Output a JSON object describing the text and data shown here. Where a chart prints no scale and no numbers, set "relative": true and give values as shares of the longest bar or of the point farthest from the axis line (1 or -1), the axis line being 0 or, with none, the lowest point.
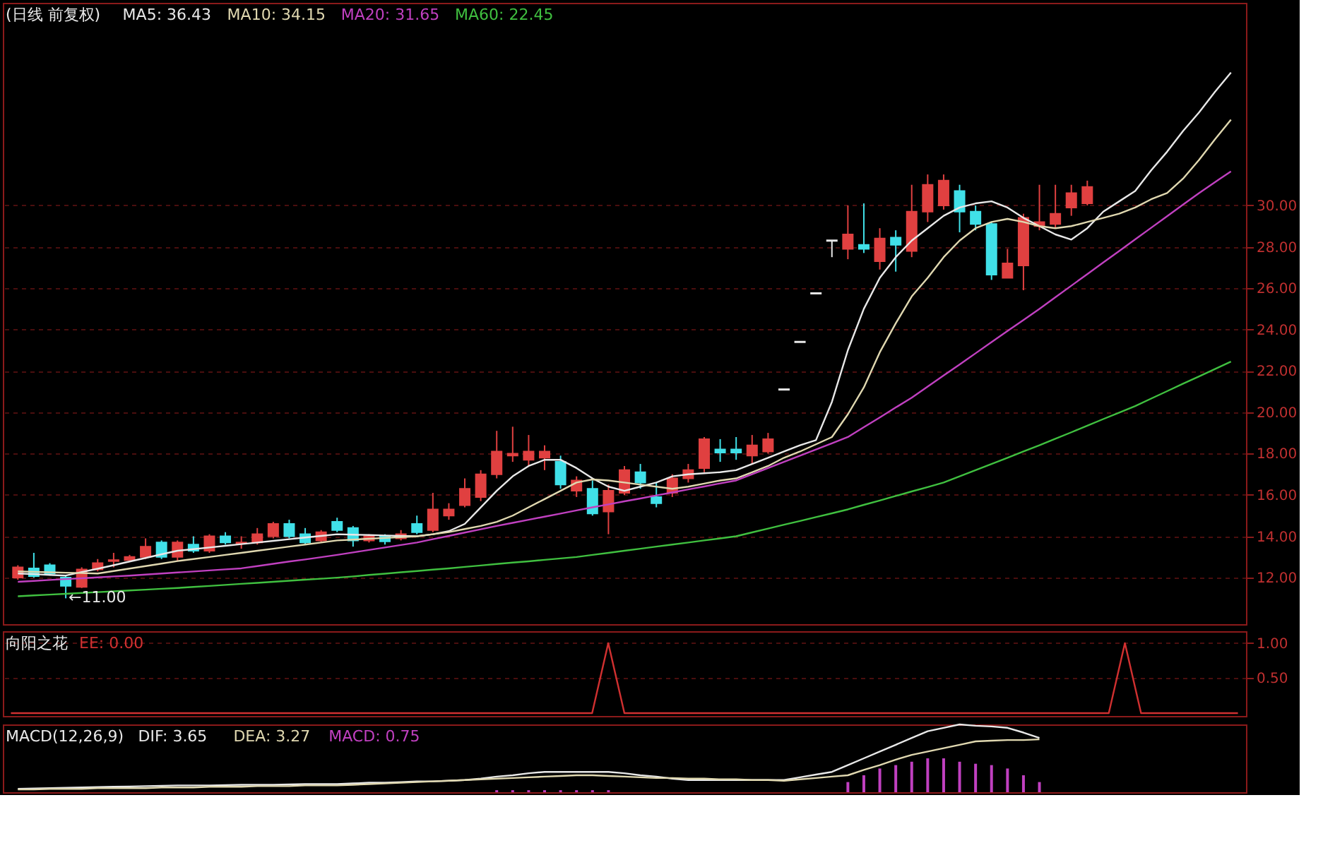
{
  "chart_data": [
    {
      "type": "candlestick",
      "title": "(日线 前复权)",
      "grid": "y",
      "tick_labels": "y",
      "line_style": "solid",
      "categories": [
        null,
        null,
        null,
        null,
        null,
        null,
        null,
        null,
        null,
        null,
        null,
        null,
        null,
        null,
        null,
        null,
        null,
        null,
        null,
        null,
        null,
        null,
        null,
        null,
        null,
        null,
        null,
        null,
        null,
        null,
        null,
        null,
        null,
        null,
        null,
        null,
        null,
        null,
        null,
        null,
        null,
        null,
        null,
        null,
        null,
        null,
        null,
        null,
        null,
        null,
        null,
        null,
        null,
        null,
        null,
        null,
        null,
        null,
        null,
        null,
        null,
        null,
        null,
        null,
        null,
        null,
        null,
        null,
        null,
        null,
        null,
        null,
        null,
        null,
        null,
        null,
        null
      ],
      "ylim": [
        9.75,
        39.8
      ],
      "yticks": [
        {
          "value": 12,
          "label": "12.00"
        },
        {
          "value": 14,
          "label": "14.00"
        },
        {
          "value": 16,
          "label": "16.00"
        },
        {
          "value": 18,
          "label": "18.00"
        },
        {
          "value": 20,
          "label": "20.00"
        },
        {
          "value": 22,
          "label": "22.00"
        },
        {
          "value": 24,
          "label": "24.00"
        },
        {
          "value": 26,
          "label": "26.00"
        },
        {
          "value": 28,
          "label": "28.00"
        },
        {
          "value": 30,
          "label": "30.00"
        }
      ],
      "ohlc": [
        [
          12.0,
          12.6,
          11.9,
          12.5
        ],
        [
          12.45,
          13.2,
          12.0,
          12.07
        ],
        [
          12.6,
          12.7,
          12.1,
          12.2
        ],
        [
          12.0,
          12.1,
          11.0,
          11.6
        ],
        [
          11.55,
          12.5,
          11.5,
          12.4
        ],
        [
          12.4,
          12.9,
          12.3,
          12.7
        ],
        [
          12.8,
          13.2,
          12.5,
          12.85
        ],
        [
          12.85,
          13.1,
          12.8,
          13.0
        ],
        [
          13.0,
          13.9,
          12.9,
          13.5
        ],
        [
          13.7,
          13.8,
          12.9,
          13.0
        ],
        [
          13.0,
          13.8,
          12.8,
          13.7
        ],
        [
          13.6,
          14.0,
          13.2,
          13.3
        ],
        [
          13.3,
          14.1,
          13.2,
          14.0
        ],
        [
          14.0,
          14.2,
          13.6,
          13.7
        ],
        [
          13.65,
          14.0,
          13.4,
          13.7
        ],
        [
          13.7,
          14.4,
          13.6,
          14.1
        ],
        [
          14.0,
          14.7,
          13.9,
          14.6
        ],
        [
          14.6,
          14.8,
          13.9,
          14.0
        ],
        [
          14.1,
          14.4,
          13.6,
          13.7
        ],
        [
          13.8,
          14.3,
          13.7,
          14.2
        ],
        [
          14.7,
          14.9,
          14.2,
          14.3
        ],
        [
          14.4,
          14.5,
          13.5,
          13.8
        ],
        [
          13.8,
          14.1,
          13.7,
          14.0
        ],
        [
          14.0,
          14.1,
          13.6,
          13.75
        ],
        [
          13.9,
          14.3,
          13.8,
          14.1
        ],
        [
          14.6,
          15.0,
          14.1,
          14.2
        ],
        [
          14.3,
          16.1,
          14.2,
          15.3
        ],
        [
          15.0,
          15.6,
          14.8,
          15.3
        ],
        [
          15.5,
          16.8,
          15.4,
          16.3
        ],
        [
          15.9,
          17.2,
          15.7,
          17.0
        ],
        [
          17.0,
          19.1,
          16.8,
          18.1
        ],
        [
          17.9,
          19.3,
          17.6,
          18.0
        ],
        [
          17.7,
          18.9,
          17.4,
          18.1
        ],
        [
          17.8,
          18.4,
          17.2,
          18.1
        ],
        [
          17.6,
          17.9,
          16.3,
          16.5
        ],
        [
          16.2,
          16.9,
          15.9,
          16.7
        ],
        [
          16.3,
          16.7,
          15.0,
          15.1
        ],
        [
          15.2,
          16.5,
          14.1,
          16.2
        ],
        [
          16.1,
          17.4,
          16.0,
          17.2
        ],
        [
          17.1,
          17.5,
          16.3,
          16.6
        ],
        [
          15.9,
          16.6,
          15.4,
          15.6
        ],
        [
          16.1,
          17.0,
          15.9,
          16.8
        ],
        [
          16.8,
          17.5,
          16.6,
          17.2
        ],
        [
          17.3,
          18.8,
          17.1,
          18.7
        ],
        [
          18.2,
          18.7,
          17.6,
          18.05
        ],
        [
          18.2,
          18.8,
          17.7,
          18.05
        ],
        [
          17.9,
          18.9,
          17.5,
          18.4
        ],
        [
          18.1,
          19.0,
          18.0,
          18.7
        ],
        [
          21.1,
          21.1,
          21.1,
          21.1
        ],
        [
          23.4,
          23.4,
          23.4,
          23.4
        ],
        [
          25.75,
          25.75,
          25.75,
          25.75
        ],
        [
          28.3,
          28.3,
          27.5,
          28.3
        ],
        [
          27.9,
          30.0,
          27.4,
          28.6
        ],
        [
          28.1,
          30.1,
          27.7,
          27.9
        ],
        [
          27.3,
          28.9,
          26.9,
          28.4
        ],
        [
          28.45,
          28.8,
          26.8,
          28.1
        ],
        [
          27.8,
          31.0,
          27.5,
          29.7
        ],
        [
          29.7,
          31.5,
          29.2,
          31.0
        ],
        [
          30.0,
          31.5,
          29.8,
          31.2
        ],
        [
          30.7,
          31.0,
          28.7,
          29.7
        ],
        [
          29.7,
          30.0,
          28.8,
          29.1
        ],
        [
          29.1,
          29.2,
          26.4,
          26.65
        ],
        [
          26.5,
          27.9,
          26.5,
          27.2
        ],
        [
          27.1,
          29.6,
          25.9,
          29.4
        ],
        [
          29.0,
          31.0,
          28.8,
          29.2
        ],
        [
          29.1,
          31.0,
          28.9,
          29.6
        ],
        [
          29.9,
          31.0,
          29.5,
          30.6
        ],
        [
          30.1,
          31.2,
          30.0,
          30.9
        ],
        null,
        null,
        null,
        null,
        null,
        null,
        null,
        null,
        null
      ],
      "colors": [
        "#e04040",
        "#40e0e8",
        "#40e0e8",
        "#40e0e8",
        "#e04040",
        "#e04040",
        "#e04040",
        "#e04040",
        "#e04040",
        "#40e0e8",
        "#e04040",
        "#40e0e8",
        "#e04040",
        "#40e0e8",
        "#e04040",
        "#e04040",
        "#e04040",
        "#40e0e8",
        "#40e0e8",
        "#e04040",
        "#40e0e8",
        "#40e0e8",
        "#e04040",
        "#40e0e8",
        "#e04040",
        "#40e0e8",
        "#e04040",
        "#e04040",
        "#e04040",
        "#e04040",
        "#e04040",
        "#e04040",
        "#e04040",
        "#e04040",
        "#40e0e8",
        "#e04040",
        "#40e0e8",
        "#e04040",
        "#e04040",
        "#40e0e8",
        "#40e0e8",
        "#e04040",
        "#e04040",
        "#e04040",
        "#40e0e8",
        "#40e0e8",
        "#e04040",
        "#e04040",
        "#e8e8e8",
        "#e8e8e8",
        "#e8e8e8",
        "#e8e8e8",
        "#e04040",
        "#40e0e8",
        "#e04040",
        "#40e0e8",
        "#e04040",
        "#e04040",
        "#e04040",
        "#40e0e8",
        "#40e0e8",
        "#40e0e8",
        "#e04040",
        "#e04040",
        "#e04040",
        "#e04040",
        "#e04040",
        "#e04040",
        null,
        null,
        null,
        null,
        null,
        null,
        null,
        null,
        null
      ],
      "series": [
        {
          "name": "MA5: 36.43",
          "color": "#e8e8e8",
          "type": "line",
          "values": [
            12.2,
            12.17,
            12.13,
            12.1,
            12.27,
            12.43,
            12.6,
            12.78,
            12.95,
            13.13,
            13.3,
            13.38,
            13.46,
            13.54,
            13.62,
            13.7,
            13.78,
            13.86,
            13.94,
            14.02,
            14.1,
            14.08,
            14.06,
            14.04,
            14.02,
            14.0,
            14.1,
            14.25,
            14.6,
            15.4,
            16.2,
            16.9,
            17.4,
            17.7,
            17.7,
            17.3,
            16.8,
            16.4,
            16.2,
            16.4,
            16.6,
            16.9,
            17.0,
            17.05,
            17.1,
            17.2,
            17.5,
            17.8,
            18.1,
            18.4,
            18.65,
            20.5,
            23.0,
            25.0,
            26.5,
            27.5,
            28.3,
            28.9,
            29.5,
            29.9,
            30.1,
            30.2,
            29.9,
            29.4,
            29.0,
            28.6,
            28.35,
            28.9,
            29.7,
            30.2,
            30.7,
            31.7,
            32.6,
            33.6,
            34.5,
            35.5,
            36.43
          ]
        },
        {
          "name": "MA10: 34.15",
          "color": "#e0d8b0",
          "type": "line",
          "values": [
            12.3,
            12.28,
            12.26,
            12.24,
            12.22,
            12.2,
            12.32,
            12.44,
            12.56,
            12.68,
            12.8,
            12.9,
            13.0,
            13.1,
            13.2,
            13.3,
            13.4,
            13.5,
            13.6,
            13.7,
            13.8,
            13.84,
            13.88,
            13.92,
            13.96,
            14.0,
            14.1,
            14.2,
            14.35,
            14.5,
            14.7,
            15.0,
            15.4,
            15.8,
            16.2,
            16.6,
            16.75,
            16.7,
            16.6,
            16.5,
            16.4,
            16.3,
            16.4,
            16.55,
            16.7,
            16.8,
            17.1,
            17.4,
            17.8,
            18.1,
            18.45,
            18.8,
            19.9,
            21.2,
            22.9,
            24.3,
            25.6,
            26.5,
            27.5,
            28.3,
            28.9,
            29.2,
            29.35,
            29.2,
            29.0,
            28.9,
            29.0,
            29.2,
            29.4,
            29.6,
            29.9,
            30.3,
            30.6,
            31.3,
            32.2,
            33.2,
            34.15
          ]
        },
        {
          "name": "MA20: 31.65",
          "color": "#c040c0",
          "type": "line",
          "values": [
            11.8,
            11.84,
            11.89,
            11.93,
            11.97,
            12.01,
            12.06,
            12.1,
            12.15,
            12.2,
            12.25,
            12.3,
            12.35,
            12.4,
            12.45,
            12.56,
            12.67,
            12.78,
            12.88,
            12.99,
            13.1,
            13.22,
            13.34,
            13.46,
            13.58,
            13.7,
            13.86,
            14.02,
            14.18,
            14.34,
            14.5,
            14.65,
            14.8,
            14.95,
            15.1,
            15.25,
            15.4,
            15.54,
            15.69,
            15.83,
            15.98,
            16.12,
            16.27,
            16.41,
            16.56,
            16.7,
            17.0,
            17.3,
            17.6,
            17.9,
            18.2,
            18.5,
            18.8,
            19.28,
            19.75,
            20.23,
            20.7,
            21.24,
            21.78,
            22.31,
            22.85,
            23.39,
            23.93,
            24.46,
            25.0,
            25.56,
            26.12,
            26.68,
            27.24,
            27.8,
            28.36,
            28.92,
            29.48,
            30.04,
            30.6,
            31.13,
            31.65
          ]
        },
        {
          "name": "MA60: 22.45",
          "color": "#40c040",
          "type": "line",
          "values": [
            11.1,
            11.14,
            11.18,
            11.22,
            11.26,
            11.3,
            11.34,
            11.38,
            11.42,
            11.46,
            11.5,
            11.55,
            11.6,
            11.65,
            11.7,
            11.75,
            11.8,
            11.85,
            11.9,
            11.95,
            12.0,
            12.06,
            12.13,
            12.19,
            12.26,
            12.32,
            12.39,
            12.45,
            12.52,
            12.59,
            12.66,
            12.73,
            12.79,
            12.86,
            12.93,
            13.0,
            13.1,
            13.2,
            13.3,
            13.4,
            13.5,
            13.6,
            13.7,
            13.8,
            13.9,
            14.0,
            14.19,
            14.37,
            14.56,
            14.74,
            14.93,
            15.11,
            15.3,
            15.52,
            15.73,
            15.95,
            16.17,
            16.38,
            16.6,
            16.9,
            17.2,
            17.5,
            17.8,
            18.1,
            18.4,
            18.72,
            19.03,
            19.35,
            19.67,
            19.98,
            20.3,
            20.66,
            21.02,
            21.38,
            21.73,
            22.09,
            22.45
          ]
        }
      ],
      "annotations": [
        {
          "text": "←11.00",
          "y": 11.0
        }
      ]
    },
    {
      "type": "line",
      "title": "向阳之花",
      "grid": "y",
      "tick_labels": "y",
      "line_style": "solid",
      "categories": [
        null,
        null,
        null,
        null,
        null,
        null,
        null,
        null,
        null,
        null,
        null,
        null,
        null,
        null,
        null,
        null,
        null,
        null,
        null,
        null,
        null,
        null,
        null,
        null,
        null,
        null,
        null,
        null,
        null,
        null,
        null,
        null,
        null,
        null,
        null,
        null,
        null,
        null,
        null,
        null,
        null,
        null,
        null,
        null,
        null,
        null,
        null,
        null,
        null,
        null,
        null,
        null,
        null,
        null,
        null,
        null,
        null,
        null,
        null,
        null,
        null,
        null,
        null,
        null,
        null,
        null,
        null,
        null,
        null,
        null,
        null,
        null,
        null,
        null,
        null,
        null,
        null
      ],
      "ylim": [
        -0.04,
        1.17
      ],
      "yticks": [
        {
          "value": 0.5,
          "label": "0.50"
        },
        {
          "value": 1,
          "label": "1.00"
        }
      ],
      "series": [
        {
          "name": "EE: 0.00",
          "color": "#d03030",
          "values": [
            0,
            0,
            0,
            0,
            0,
            0,
            0,
            0,
            0,
            0,
            0,
            0,
            0,
            0,
            0,
            0,
            0,
            0,
            0,
            0,
            0,
            0,
            0,
            0,
            0,
            0,
            0,
            0,
            0,
            0,
            0,
            0,
            0,
            0,
            0,
            0,
            0,
            1,
            0,
            0,
            0,
            0,
            0,
            0,
            0,
            0,
            0,
            0,
            0,
            0,
            0,
            0,
            0,
            0,
            0,
            0,
            0,
            0,
            0,
            0,
            0,
            0,
            0,
            0,
            0,
            0,
            0,
            0,
            0,
            1,
            0,
            0,
            0,
            0,
            0,
            0,
            0
          ]
        }
      ]
    },
    {
      "type": "line",
      "title": "MACD(12,26,9)",
      "relative": true,
      "tick_labels": false,
      "line_style": "solid",
      "categories": [
        null,
        null,
        null,
        null,
        null,
        null,
        null,
        null,
        null,
        null,
        null,
        null,
        null,
        null,
        null,
        null,
        null,
        null,
        null,
        null,
        null,
        null,
        null,
        null,
        null,
        null,
        null,
        null,
        null,
        null,
        null,
        null,
        null,
        null,
        null,
        null,
        null,
        null,
        null,
        null,
        null,
        null,
        null,
        null,
        null,
        null,
        null,
        null,
        null,
        null,
        null,
        null,
        null,
        null,
        null,
        null,
        null,
        null,
        null,
        null,
        null,
        null,
        null,
        null,
        null,
        null,
        null,
        null,
        null,
        null,
        null,
        null,
        null,
        null,
        null,
        null,
        null
      ],
      "series": [
        {
          "name": "DIF: 3.65",
          "color": "#e8e8e8",
          "values": [
            0.05,
            0.055,
            0.06,
            0.065,
            0.07,
            0.075,
            0.08,
            0.085,
            0.09,
            0.095,
            0.1,
            0.1,
            0.1,
            0.105,
            0.11,
            0.11,
            0.11,
            0.115,
            0.12,
            0.12,
            0.12,
            0.13,
            0.14,
            0.14,
            0.15,
            0.16,
            0.16,
            0.17,
            0.18,
            0.2,
            0.23,
            0.25,
            0.28,
            0.3,
            0.3,
            0.3,
            0.3,
            0.3,
            0.28,
            0.25,
            0.23,
            0.2,
            0.18,
            0.18,
            0.18,
            0.18,
            0.18,
            0.18,
            0.18,
            0.22,
            0.26,
            0.3,
            0.4,
            0.5,
            0.6,
            0.7,
            0.8,
            0.9,
            0.95,
            1.0,
            0.98,
            0.97,
            0.95,
            0.88,
            0.8,
            null,
            null,
            null,
            null,
            null,
            null,
            null,
            null,
            null,
            null,
            null,
            null
          ]
        },
        {
          "name": "DEA: 3.27",
          "color": "#e0d8b0",
          "values": [
            0.04,
            0.04,
            0.05,
            0.05,
            0.05,
            0.06,
            0.06,
            0.06,
            0.06,
            0.07,
            0.07,
            0.07,
            0.08,
            0.08,
            0.08,
            0.09,
            0.09,
            0.09,
            0.1,
            0.1,
            0.1,
            0.11,
            0.12,
            0.13,
            0.14,
            0.15,
            0.16,
            0.17,
            0.18,
            0.19,
            0.2,
            0.21,
            0.22,
            0.23,
            0.24,
            0.25,
            0.25,
            0.24,
            0.23,
            0.22,
            0.21,
            0.21,
            0.2,
            0.2,
            0.19,
            0.19,
            0.18,
            0.18,
            0.17,
            0.19,
            0.21,
            0.23,
            0.25,
            0.33,
            0.4,
            0.48,
            0.55,
            0.6,
            0.65,
            0.7,
            0.75,
            0.76,
            0.77,
            0.77,
            0.78,
            null,
            null,
            null,
            null,
            null,
            null,
            null,
            null,
            null,
            null,
            null,
            null
          ]
        },
        {
          "name": "MACD: 0.75",
          "color": "#c040c0",
          "type": "bar",
          "values": [
            null,
            null,
            null,
            null,
            null,
            null,
            null,
            null,
            null,
            null,
            null,
            null,
            null,
            null,
            null,
            null,
            null,
            null,
            null,
            null,
            null,
            null,
            null,
            null,
            null,
            null,
            null,
            null,
            null,
            null,
            0.03,
            0.03,
            0.03,
            0.03,
            0.03,
            0.03,
            0.03,
            0.03,
            null,
            null,
            null,
            null,
            null,
            null,
            null,
            null,
            null,
            null,
            null,
            null,
            null,
            null,
            0.15,
            0.25,
            0.35,
            0.4,
            0.45,
            0.5,
            0.5,
            0.45,
            0.42,
            0.4,
            0.35,
            0.25,
            0.15,
            null,
            null,
            null,
            null,
            null,
            null,
            null,
            null,
            null,
            null,
            null,
            null
          ]
        }
      ]
    }
  ]
}
